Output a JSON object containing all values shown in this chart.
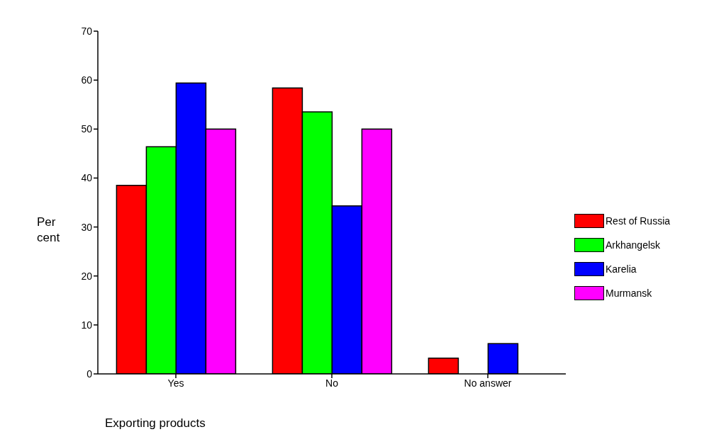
{
  "chart_data": {
    "type": "bar",
    "xlabel": "Exporting products",
    "ylabel": "Per cent",
    "categories": [
      "Yes",
      "No",
      "No answer"
    ],
    "series": [
      {
        "name": "Rest of Russia",
        "color": "#ff0000",
        "values": [
          38.5,
          58.4,
          3.2
        ]
      },
      {
        "name": "Arkhangelsk",
        "color": "#00ff00",
        "values": [
          46.4,
          53.5,
          0
        ]
      },
      {
        "name": "Karelia",
        "color": "#0000ff",
        "values": [
          59.4,
          34.3,
          6.2
        ]
      },
      {
        "name": "Murmansk",
        "color": "#ff00ff",
        "values": [
          50,
          50,
          0
        ]
      }
    ],
    "ylim": [
      0,
      70
    ],
    "yticks": [
      0,
      10,
      20,
      30,
      40,
      50,
      60,
      70
    ],
    "grid": false,
    "legend": "right"
  }
}
